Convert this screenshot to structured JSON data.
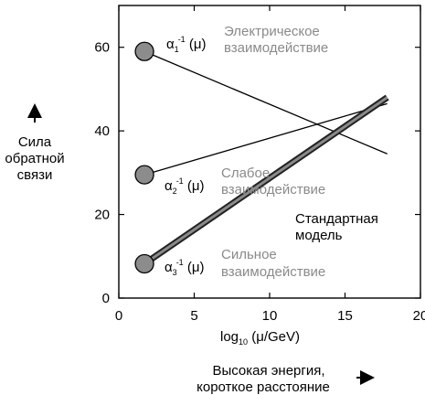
{
  "chart_data": {
    "type": "line",
    "xlabel": {
      "main": "log",
      "sub": "10",
      "rest": " (μ/GeV)"
    },
    "ylabel": [
      "Сила",
      "обратной",
      "связи"
    ],
    "y_arrow_icon": "up-arrow-icon",
    "xlim": [
      0,
      20
    ],
    "ylim": [
      0,
      70
    ],
    "x_ticks": [
      0,
      5,
      10,
      15,
      20
    ],
    "y_ticks": [
      0,
      20,
      40,
      60
    ],
    "series": [
      {
        "id": "alpha1",
        "x": [
          1.7,
          17.8
        ],
        "y": [
          59,
          34.5
        ],
        "color": "#000000",
        "style": "thin",
        "marker_color": "#8c8c8c"
      },
      {
        "id": "alpha2",
        "x": [
          1.7,
          17.8
        ],
        "y": [
          29.5,
          46.5
        ],
        "color": "#000000",
        "style": "thin",
        "marker_color": "#8c8c8c"
      },
      {
        "id": "alpha3",
        "x": [
          1.7,
          17.8
        ],
        "y": [
          8.2,
          48.0
        ],
        "color": "#555555",
        "style": "thick",
        "marker_color": "#8c8c8c"
      }
    ],
    "curve_labels": [
      {
        "id": "a1",
        "sym": "α",
        "sub": "1",
        "sup": "-1",
        "arg": " (μ)"
      },
      {
        "id": "a2",
        "sym": "α",
        "sub": "2",
        "sup": "-1",
        "arg": " (μ)"
      },
      {
        "id": "a3",
        "sym": "α",
        "sub": "3",
        "sup": "-1",
        "arg": " (μ)"
      }
    ],
    "annotations": {
      "em": [
        "Электрическое",
        "взаимодействие"
      ],
      "weak": [
        "Слабое",
        "взаимодействие"
      ],
      "strong": [
        "Сильное",
        "взаимодействие"
      ],
      "standard_model": [
        "Стандартная",
        "модель"
      ]
    },
    "bottom_caption": [
      "Высокая энергия,",
      "короткое расстояние"
    ],
    "bottom_arrow_icon": "right-arrow-icon",
    "grid": false
  }
}
